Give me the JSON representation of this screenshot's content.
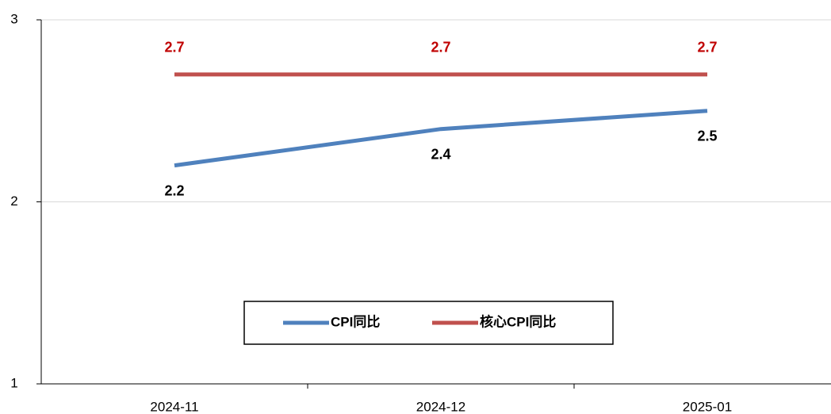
{
  "chart_data": {
    "type": "line",
    "categories": [
      "2024-11",
      "2024-12",
      "2025-01"
    ],
    "series": [
      {
        "name": "CPI同比",
        "color": "#4f81bd",
        "label_color": "#000000",
        "label_position": "below",
        "values": [
          2.2,
          2.4,
          2.5
        ]
      },
      {
        "name": "核心CPI同比",
        "color": "#c0504d",
        "label_color": "#c00000",
        "label_position": "above",
        "values": [
          2.7,
          2.7,
          2.7
        ]
      }
    ],
    "ylim": [
      1,
      3
    ],
    "yticks": [
      1,
      2,
      3
    ],
    "grid": true,
    "legend": "bottom"
  }
}
